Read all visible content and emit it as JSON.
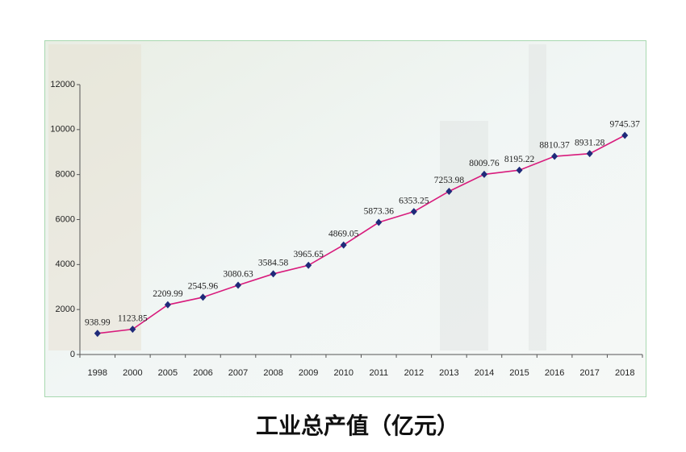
{
  "chart_data": {
    "type": "line",
    "title": "工业总产值（亿元）",
    "categories": [
      "1998",
      "2000",
      "2005",
      "2006",
      "2007",
      "2008",
      "2009",
      "2010",
      "2011",
      "2012",
      "2013",
      "2014",
      "2015",
      "2016",
      "2017",
      "2018"
    ],
    "values": [
      938.99,
      1123.85,
      2209.99,
      2545.96,
      3080.63,
      3584.58,
      3965.65,
      4869.05,
      5873.36,
      6353.25,
      7253.98,
      8009.76,
      8195.22,
      8810.37,
      8931.28,
      9745.37
    ],
    "color": "#d81b7c",
    "marker_color": "#1f2a7a",
    "ylim": [
      0,
      12000
    ],
    "yticks": [
      0,
      2000,
      4000,
      6000,
      8000,
      10000,
      12000
    ],
    "grid": false
  }
}
